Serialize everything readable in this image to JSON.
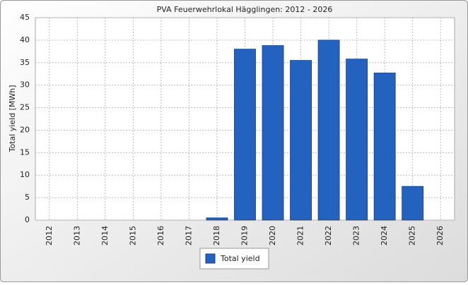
{
  "chart_data": {
    "type": "bar",
    "title": "PVA Feuerwehrlokal Hägglingen: 2012 - 2026",
    "y_label": "Total yield [MWh]",
    "categories": [
      "2012",
      "2013",
      "2014",
      "2015",
      "2016",
      "2017",
      "2018",
      "2019",
      "2020",
      "2021",
      "2022",
      "2023",
      "2024",
      "2025",
      "2026"
    ],
    "series": [
      {
        "name": "Total yield",
        "color": "#2462c0",
        "values": [
          0,
          0,
          0,
          0,
          0,
          0,
          0.5,
          38,
          38.8,
          35.5,
          40,
          35.8,
          32.7,
          7.5,
          0
        ]
      }
    ],
    "ylim": [
      0,
      45
    ],
    "yticks": [
      0,
      5,
      10,
      15,
      20,
      25,
      30,
      35,
      40,
      45
    ],
    "grid": true
  }
}
